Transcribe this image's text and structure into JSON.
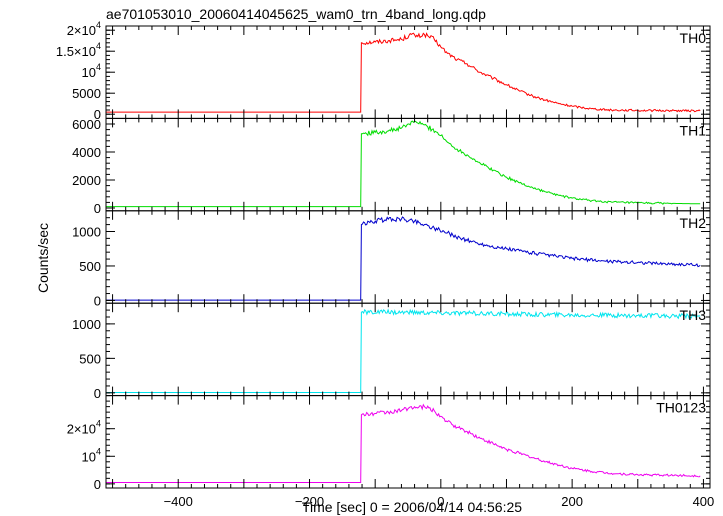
{
  "chart_data": {
    "type": "line",
    "title": "ae701053010_20060414045625_wam0_trn_4band_long.qdp",
    "xlabel": "Time [sec] 0 = 2006/04/14 04:56:25",
    "ylabel": "Counts/sec",
    "xlim": [
      -510,
      410
    ],
    "x_ticks": [
      -400,
      -200,
      0,
      200,
      400
    ],
    "x_tick_labels": [
      "−400",
      "−200",
      "0",
      "200",
      "400"
    ],
    "grid": false,
    "panels": [
      {
        "name": "TH0",
        "color": "#ff0000",
        "ylim": [
          -1000,
          21000
        ],
        "y_ticks": [
          0,
          5000,
          10000,
          15000,
          20000
        ],
        "y_tick_labels": [
          {
            "mantissa": "0",
            "exp": ""
          },
          {
            "mantissa": "5000",
            "exp": ""
          },
          {
            "mantissa": "10",
            "exp": "4"
          },
          {
            "mantissa": "1.5×10",
            "exp": "4"
          },
          {
            "mantissa": "2×10",
            "exp": "4"
          }
        ],
        "x": [
          -510,
          -122,
          -121,
          -100,
          -80,
          -60,
          -45,
          -35,
          -25,
          -10,
          0,
          10,
          25,
          40,
          60,
          80,
          100,
          120,
          140,
          160,
          180,
          200,
          230,
          260,
          300,
          350,
          395
        ],
        "y": [
          500,
          500,
          17000,
          17200,
          17500,
          17800,
          19000,
          18500,
          19000,
          17800,
          16000,
          14500,
          13000,
          12000,
          10000,
          8500,
          7000,
          5500,
          4300,
          3300,
          2500,
          1900,
          1300,
          1000,
          900,
          850,
          800
        ]
      },
      {
        "name": "TH1",
        "color": "#00dd00",
        "ylim": [
          -200,
          6400
        ],
        "y_ticks": [
          0,
          2000,
          4000,
          6000
        ],
        "y_tick_labels": [
          {
            "mantissa": "0",
            "exp": ""
          },
          {
            "mantissa": "2000",
            "exp": ""
          },
          {
            "mantissa": "4000",
            "exp": ""
          },
          {
            "mantissa": "6000",
            "exp": ""
          }
        ],
        "x": [
          -510,
          -122,
          -121,
          -100,
          -80,
          -60,
          -40,
          -30,
          -20,
          -5,
          10,
          25,
          40,
          60,
          80,
          100,
          120,
          140,
          160,
          180,
          200,
          230,
          260,
          300,
          350,
          395
        ],
        "y": [
          100,
          100,
          5300,
          5400,
          5500,
          5700,
          6200,
          6000,
          5800,
          5400,
          4700,
          4200,
          3800,
          3200,
          2700,
          2200,
          1800,
          1450,
          1150,
          900,
          700,
          520,
          420,
          360,
          330,
          300
        ]
      },
      {
        "name": "TH2",
        "color": "#0000cc",
        "ylim": [
          -40,
          1300
        ],
        "y_ticks": [
          0,
          500,
          1000
        ],
        "y_tick_labels": [
          {
            "mantissa": "0",
            "exp": ""
          },
          {
            "mantissa": "500",
            "exp": ""
          },
          {
            "mantissa": "1000",
            "exp": ""
          }
        ],
        "x": [
          -510,
          -122,
          -121,
          -100,
          -80,
          -60,
          -40,
          -25,
          -10,
          10,
          30,
          60,
          90,
          120,
          160,
          200,
          250,
          300,
          350,
          395
        ],
        "y": [
          5,
          5,
          1100,
          1150,
          1180,
          1180,
          1150,
          1100,
          1050,
          980,
          900,
          820,
          760,
          720,
          660,
          610,
          570,
          550,
          530,
          510
        ]
      },
      {
        "name": "TH3",
        "color": "#00e5ee",
        "ylim": [
          -40,
          1300
        ],
        "y_ticks": [
          0,
          500,
          1000
        ],
        "y_tick_labels": [
          {
            "mantissa": "0",
            "exp": ""
          },
          {
            "mantissa": "500",
            "exp": ""
          },
          {
            "mantissa": "1000",
            "exp": ""
          }
        ],
        "x": [
          -510,
          -122,
          -121,
          -60,
          0,
          60,
          120,
          200,
          300,
          395
        ],
        "y": [
          5,
          5,
          1170,
          1170,
          1160,
          1150,
          1140,
          1130,
          1120,
          1110
        ]
      },
      {
        "name": "TH0123",
        "color": "#ee00ee",
        "ylim": [
          -1500,
          32000
        ],
        "y_ticks": [
          0,
          10000,
          20000
        ],
        "y_tick_labels": [
          {
            "mantissa": "0",
            "exp": ""
          },
          {
            "mantissa": "10",
            "exp": "4"
          },
          {
            "mantissa": "2×10",
            "exp": "4"
          }
        ],
        "x": [
          -510,
          -122,
          -121,
          -100,
          -80,
          -60,
          -45,
          -35,
          -25,
          -10,
          0,
          10,
          25,
          40,
          60,
          80,
          100,
          120,
          140,
          160,
          180,
          200,
          230,
          260,
          300,
          350,
          395
        ],
        "y": [
          500,
          500,
          25000,
          25500,
          26000,
          26500,
          28000,
          27500,
          28000,
          26500,
          24500,
          22500,
          20500,
          19000,
          16500,
          14500,
          12500,
          11000,
          9500,
          8000,
          6800,
          5600,
          4500,
          3800,
          3300,
          3100,
          2900
        ]
      }
    ]
  }
}
